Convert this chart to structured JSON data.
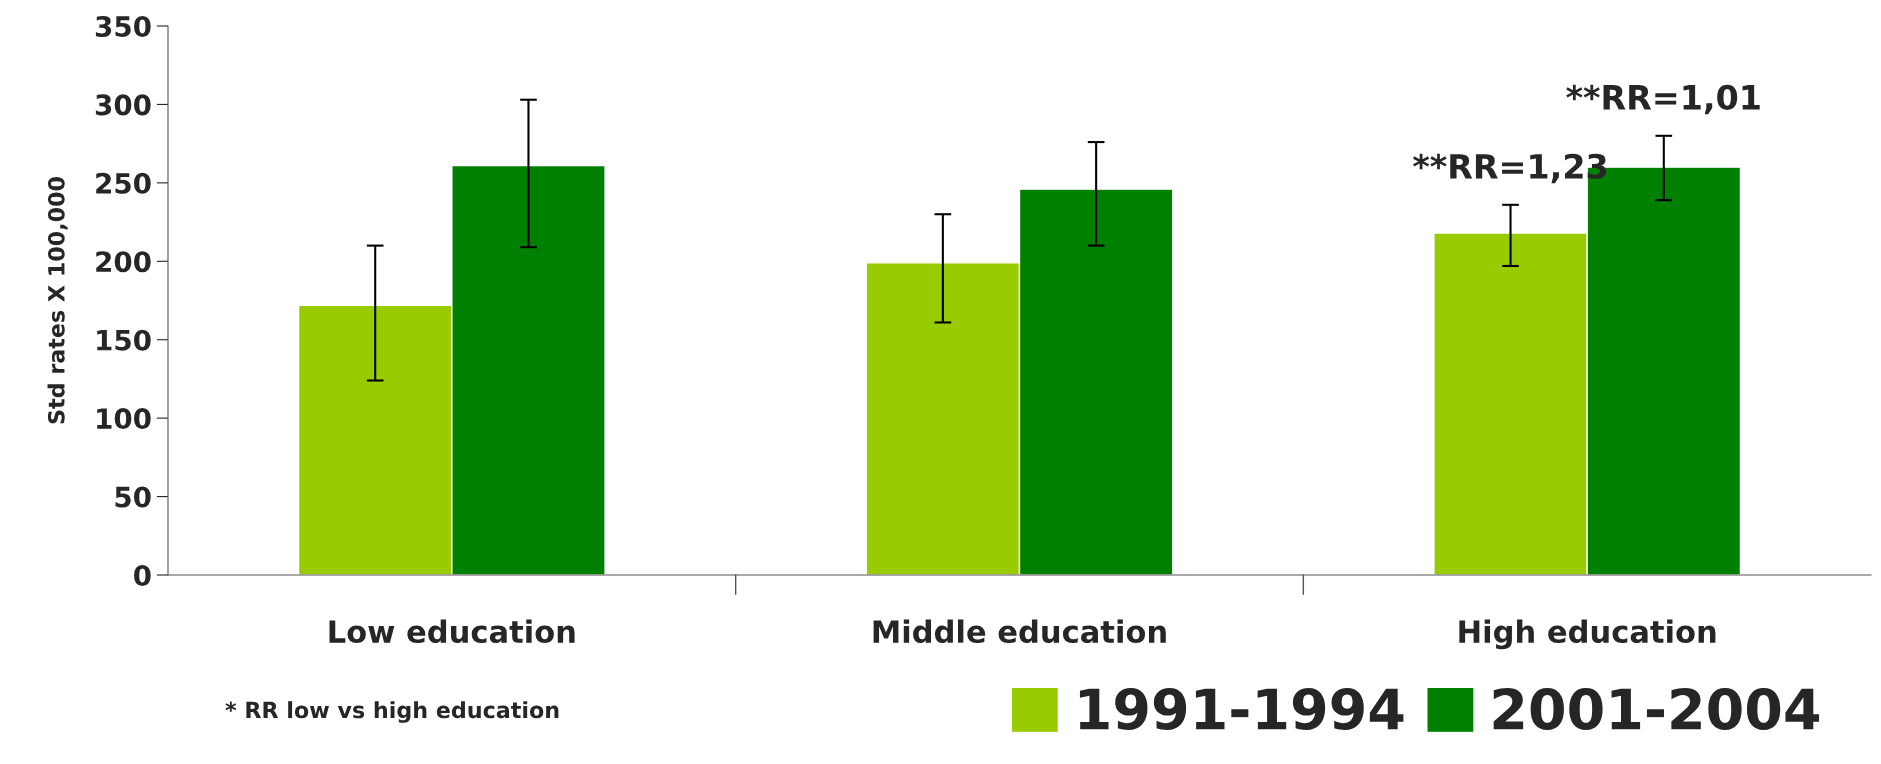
{
  "chart_data": {
    "type": "bar",
    "ylabel": "Std rates X 100,000",
    "categories": [
      "Low education",
      "Middle education",
      "High education"
    ],
    "series": [
      {
        "name": "1991-1994",
        "color": "#99cc00",
        "values": [
          172,
          199,
          218
        ],
        "errors": [
          [
            124,
            210
          ],
          [
            161,
            230
          ],
          [
            197,
            236
          ]
        ]
      },
      {
        "name": "2001-2004",
        "color": "#008000",
        "values": [
          261,
          246,
          260
        ],
        "errors": [
          [
            209,
            303
          ],
          [
            210,
            276
          ],
          [
            239,
            280
          ]
        ]
      }
    ],
    "ylim": [
      0,
      350
    ],
    "yticks": [
      0,
      50,
      100,
      150,
      200,
      250,
      300,
      350
    ],
    "grid": false,
    "legend": "bottom right",
    "annotations": [
      {
        "text": "**RR=1,23",
        "x": "High education",
        "y": 218
      },
      {
        "text": "**RR=1,01",
        "x": "High education",
        "y": 260
      },
      "* RR low vs high education"
    ]
  }
}
